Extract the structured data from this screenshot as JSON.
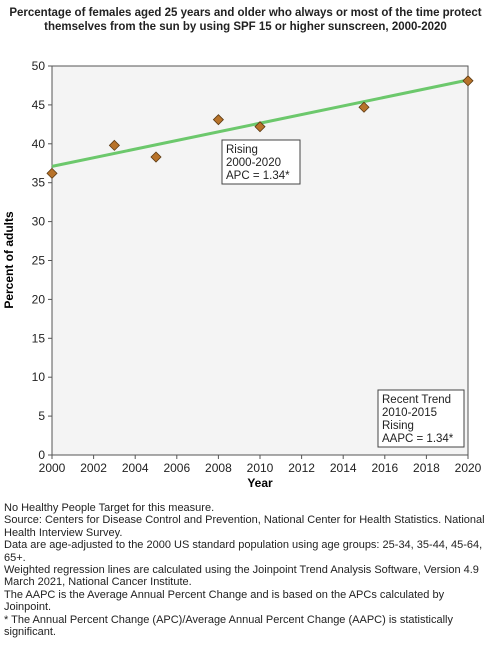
{
  "chart_data": {
    "type": "scatter",
    "title": "Percentage of females aged 25 years and older who always or most of the time protect themselves from the sun by using SPF 15 or higher sunscreen, 2000-2020",
    "xlabel": "Year",
    "ylabel": "Percent of adults",
    "xlim": [
      2000,
      2020
    ],
    "ylim": [
      0,
      50
    ],
    "x_ticks": [
      2000,
      2002,
      2004,
      2006,
      2008,
      2010,
      2012,
      2014,
      2016,
      2018,
      2020
    ],
    "y_ticks": [
      0,
      5,
      10,
      15,
      20,
      25,
      30,
      35,
      40,
      45,
      50
    ],
    "grid": false,
    "series": [
      {
        "marker": "diamond",
        "color": "#b8732a",
        "points": [
          {
            "x": 2000,
            "y": 36.2
          },
          {
            "x": 2003,
            "y": 39.8
          },
          {
            "x": 2005,
            "y": 38.3
          },
          {
            "x": 2008,
            "y": 43.1
          },
          {
            "x": 2010,
            "y": 42.2
          },
          {
            "x": 2015,
            "y": 44.7
          },
          {
            "x": 2020,
            "y": 48.1
          }
        ]
      }
    ],
    "trend_line": {
      "color": "#6cc86c",
      "points": [
        {
          "x": 2000,
          "y": 37.1
        },
        {
          "x": 2020,
          "y": 48.2
        }
      ]
    },
    "annotations": [
      {
        "id": "apc",
        "lines": [
          "Rising",
          "2000-2020",
          "APC =  1.34*"
        ]
      },
      {
        "id": "aapc",
        "lines": [
          "Recent Trend",
          "2010-2015",
          "Rising",
          "AAPC =  1.34*"
        ]
      }
    ]
  },
  "footnotes": [
    "No Healthy People Target for this measure.",
    "Source: Centers for Disease Control and Prevention, National Center for Health Statistics. National Health Interview Survey.",
    "Data are age-adjusted to the 2000 US standard population using age groups: 25-34, 35-44, 45-64, 65+.",
    "Weighted regression lines are calculated using the Joinpoint Trend Analysis Software, Version 4.9 March 2021, National Cancer Institute.",
    "The AAPC is the Average Annual Percent Change and is based on the APCs calculated by Joinpoint.",
    "* The Annual Percent Change (APC)/Average Annual Percent Change (AAPC) is statistically significant."
  ]
}
